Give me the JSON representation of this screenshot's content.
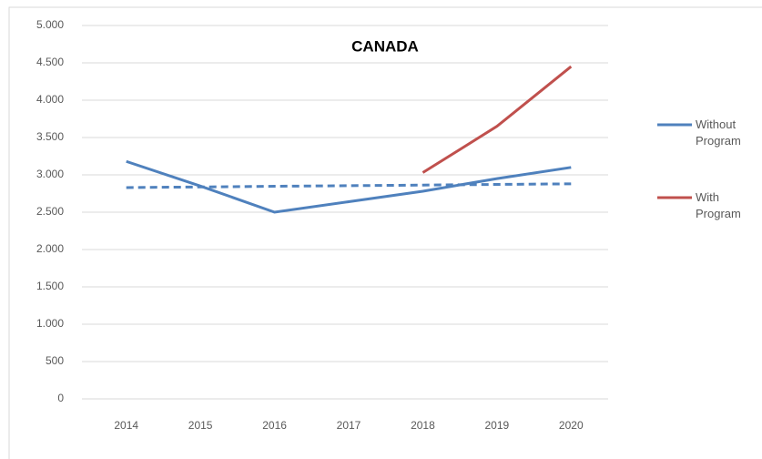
{
  "chart_data": {
    "type": "line",
    "title": "CANADA",
    "categories": [
      "2014",
      "2015",
      "2016",
      "2017",
      "2018",
      "2019",
      "2020"
    ],
    "series": [
      {
        "name": "Without Program",
        "color": "#4f81bd",
        "values": [
          3180,
          2850,
          2500,
          2640,
          2780,
          2950,
          3100
        ]
      },
      {
        "name": "With Program",
        "color": "#c0504d",
        "values": [
          null,
          null,
          null,
          null,
          3030,
          3650,
          4450
        ]
      }
    ],
    "trendline": {
      "color": "#4f81bd",
      "dashed": true,
      "values": [
        2830,
        2838,
        2847,
        2855,
        2863,
        2872,
        2880
      ]
    },
    "ylim": [
      0,
      5000
    ],
    "yticks": [
      0,
      500,
      {
        "value": 1000,
        "label": "1.000"
      },
      {
        "value": 1500,
        "label": "1.500"
      },
      {
        "value": 2000,
        "label": "2.000"
      },
      {
        "value": 2500,
        "label": "2.500"
      },
      {
        "value": 3000,
        "label": "3.000"
      },
      {
        "value": 3500,
        "label": "3.500"
      },
      {
        "value": 4000,
        "label": "4.000"
      },
      {
        "value": 4500,
        "label": "4.500"
      },
      {
        "value": 5000,
        "label": "5.000"
      }
    ],
    "grid": true,
    "legend": "right"
  }
}
